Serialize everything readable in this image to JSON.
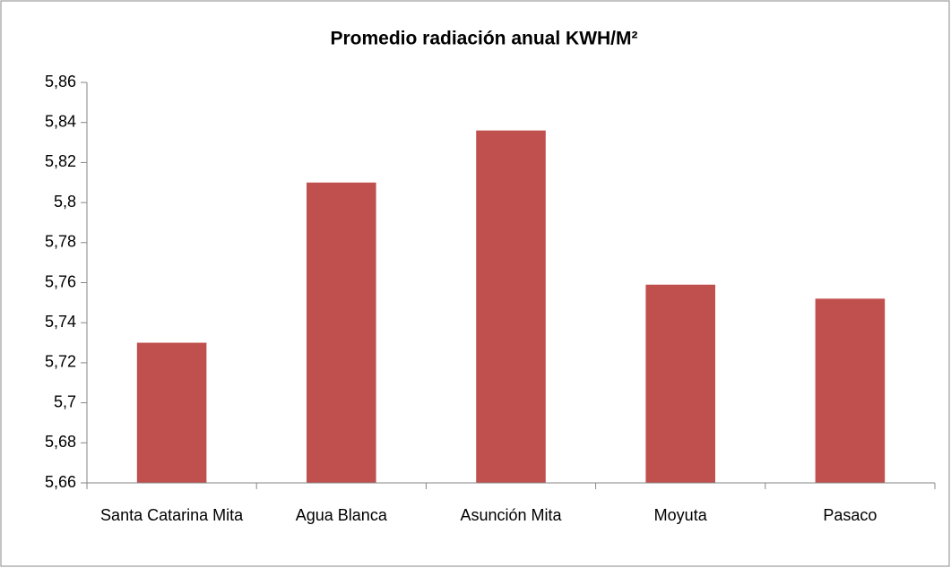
{
  "chart_data": {
    "type": "bar",
    "title": "Promedio radiación anual KWH/M²",
    "categories": [
      "Santa Catarina Mita",
      "Agua Blanca",
      "Asunción Mita",
      "Moyuta",
      "Pasaco"
    ],
    "values": [
      5.73,
      5.81,
      5.836,
      5.759,
      5.752
    ],
    "color": "#c0504d",
    "ylim": [
      5.66,
      5.86
    ],
    "yticks": [
      {
        "value": 5.66,
        "label": "5,66"
      },
      {
        "value": 5.68,
        "label": "5,68"
      },
      {
        "value": 5.7,
        "label": "5,7"
      },
      {
        "value": 5.72,
        "label": "5,72"
      },
      {
        "value": 5.74,
        "label": "5,74"
      },
      {
        "value": 5.76,
        "label": "5,76"
      },
      {
        "value": 5.78,
        "label": "5,78"
      },
      {
        "value": 5.8,
        "label": "5,8"
      },
      {
        "value": 5.82,
        "label": "5,82"
      },
      {
        "value": 5.84,
        "label": "5,84"
      },
      {
        "value": 5.86,
        "label": "5,86"
      }
    ],
    "grid": false
  }
}
